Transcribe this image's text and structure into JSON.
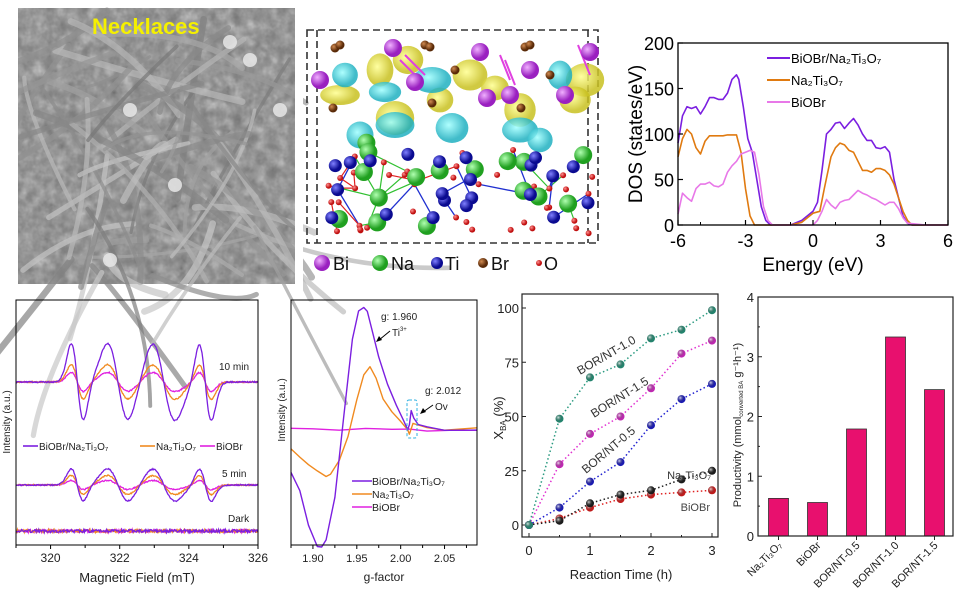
{
  "sem": {
    "label": "Necklaces",
    "label_color": "#f5f000"
  },
  "structure": {
    "legend": [
      {
        "symbol": "Bi",
        "color": "#c040e0"
      },
      {
        "symbol": "Na",
        "color": "#30d030"
      },
      {
        "symbol": "Ti",
        "color": "#1a1ad0"
      },
      {
        "symbol": "Br",
        "color": "#8b4513"
      },
      {
        "symbol": "O",
        "color": "#e02020"
      }
    ]
  },
  "chart_data": [
    {
      "id": "dos",
      "type": "line",
      "xlabel": "Energy (eV)",
      "ylabel": "DOS (states/eV)",
      "xlim": [
        -6,
        6
      ],
      "ylim": [
        0,
        200
      ],
      "xticks": [
        "-6",
        "-3",
        "0",
        "3",
        "6"
      ],
      "yticks": [
        "0",
        "50",
        "100",
        "150",
        "200"
      ],
      "legend_position": "top-right",
      "series": [
        {
          "name": "BiOBr/Na₂Ti₃O₇",
          "color": "#7b1fe0",
          "x": [
            -6,
            -5.8,
            -5.6,
            -5.4,
            -5.2,
            -5,
            -4.8,
            -4.6,
            -4.4,
            -4.2,
            -4,
            -3.8,
            -3.6,
            -3.4,
            -3.3,
            -3.1,
            -2.9,
            -2.7,
            -2.5,
            -2.3,
            -2.1,
            -1.9,
            -1.5,
            -1,
            -0.5,
            0,
            0.2,
            0.4,
            0.6,
            0.8,
            1,
            1.2,
            1.4,
            1.6,
            1.8,
            2,
            2.2,
            2.4,
            2.6,
            2.8,
            3,
            3.2,
            3.4,
            3.6,
            3.8,
            4,
            4.2,
            4.4,
            4.6,
            5,
            6
          ],
          "y": [
            90,
            120,
            130,
            128,
            130,
            122,
            130,
            140,
            140,
            138,
            138,
            145,
            160,
            165,
            160,
            130,
            95,
            80,
            50,
            20,
            5,
            0,
            0,
            0,
            5,
            15,
            25,
            60,
            100,
            105,
            112,
            113,
            106,
            112,
            117,
            110,
            100,
            93,
            93,
            85,
            84,
            86,
            80,
            50,
            30,
            10,
            2,
            0,
            0,
            0,
            0
          ]
        },
        {
          "name": "Na₂Ti₃O₇",
          "color": "#e07a10",
          "x": [
            -6,
            -5.8,
            -5.6,
            -5.4,
            -5.2,
            -5,
            -4.8,
            -4.6,
            -4.4,
            -4.2,
            -4,
            -3.8,
            -3.6,
            -3.4,
            -3.2,
            -3,
            -2.8,
            -2.6,
            -2.4,
            -2.2,
            -2,
            -1,
            -0.5,
            0,
            0.3,
            0.5,
            0.8,
            1,
            1.2,
            1.4,
            1.6,
            1.8,
            2,
            2.2,
            2.4,
            2.6,
            2.8,
            3,
            3.2,
            3.4,
            3.6,
            3.8,
            4,
            4.2,
            4.4,
            5,
            6
          ],
          "y": [
            75,
            95,
            105,
            100,
            85,
            78,
            92,
            98,
            98,
            98,
            98,
            99,
            99,
            99,
            80,
            40,
            10,
            0,
            0,
            0,
            0,
            0,
            3,
            13,
            15,
            40,
            75,
            85,
            90,
            88,
            82,
            80,
            70,
            60,
            60,
            58,
            62,
            62,
            60,
            55,
            45,
            30,
            15,
            5,
            0,
            0,
            0
          ]
        },
        {
          "name": "BiOBr",
          "color": "#e878e8",
          "x": [
            -6,
            -5.8,
            -5.6,
            -5.4,
            -5.2,
            -5,
            -4.8,
            -4.6,
            -4.4,
            -4.2,
            -4,
            -3.8,
            -3.6,
            -3.4,
            -3.2,
            -3,
            -2.8,
            -2.6,
            -2.4,
            -2.2,
            -2,
            -1.8,
            -1.5,
            0,
            0.2,
            0.4,
            0.6,
            0.8,
            1,
            1.2,
            1.4,
            1.6,
            1.8,
            2,
            2.2,
            2.4,
            2.6,
            2.8,
            3,
            3.2,
            3.4,
            3.6,
            3.8,
            4,
            4.2,
            5,
            6
          ],
          "y": [
            12,
            35,
            30,
            26,
            40,
            45,
            45,
            47,
            43,
            42,
            45,
            58,
            65,
            70,
            78,
            80,
            82,
            80,
            55,
            20,
            5,
            0,
            0,
            0,
            5,
            15,
            28,
            22,
            18,
            25,
            27,
            28,
            33,
            38,
            35,
            33,
            30,
            28,
            25,
            22,
            25,
            25,
            18,
            8,
            2,
            0,
            0
          ]
        }
      ]
    },
    {
      "id": "epr",
      "type": "line",
      "xlabel": "Magnetic Field (mT)",
      "ylabel": "Intensity (a.u.)",
      "xlim": [
        319,
        326
      ],
      "xticks": [
        "320",
        "322",
        "324",
        "326"
      ],
      "legend_position": "middle",
      "annotations": [
        "10 min",
        "5 min",
        "Dark"
      ],
      "peak_fields_mT": [
        320.6,
        321.65,
        322.95,
        324.3
      ],
      "trough_fields_mT": [
        320.95,
        322.25,
        323.6,
        324.65
      ],
      "series": [
        {
          "name": "BiOBr/Na₂Ti₃O₇",
          "color": "#7b1fe0",
          "amplitude_10min": 1.0,
          "amplitude_5min": 0.42,
          "amplitude_dark": 0.0
        },
        {
          "name": "Na₂Ti₃O₇",
          "color": "#f08a20",
          "amplitude_10min": 0.45,
          "amplitude_5min": 0.25,
          "amplitude_dark": 0.0
        },
        {
          "name": "BiOBr",
          "color": "#e020e0",
          "amplitude_10min": 0.25,
          "amplitude_5min": 0.12,
          "amplitude_dark": 0.0
        }
      ]
    },
    {
      "id": "gfactor",
      "type": "line",
      "xlabel": "g-factor",
      "ylabel": "Intensity (a.u.)",
      "xlim": [
        1.875,
        2.087
      ],
      "xticks": [
        "1.90",
        "1.95",
        "2.00",
        "2.05"
      ],
      "legend_position": "bottom-right",
      "annotations": [
        {
          "text": "g: 1.960",
          "sub": "Ti",
          "sup": "3+"
        },
        {
          "text": "g: 2.012",
          "sub": "Ov"
        }
      ],
      "series": [
        {
          "name": "BiOBr/Na₂Ti₃O₇",
          "color": "#7b1fe0",
          "x": [
            1.875,
            1.885,
            1.895,
            1.905,
            1.91,
            1.915,
            1.925,
            1.935,
            1.945,
            1.952,
            1.958,
            1.962,
            1.968,
            1.975,
            1.985,
            1.995,
            2.003,
            2.008,
            2.01,
            2.012,
            2.015,
            2.02,
            2.03,
            2.05,
            2.087
          ],
          "y": [
            -0.35,
            -0.5,
            -0.78,
            -0.95,
            -0.96,
            -0.9,
            -0.55,
            0.1,
            0.75,
            0.97,
            1.0,
            0.97,
            0.8,
            0.6,
            0.38,
            0.2,
            0.08,
            0.0,
            0.05,
            0.16,
            0.1,
            0.05,
            0.02,
            0.0,
            0.0
          ]
        },
        {
          "name": "Na₂Ti₃O₇",
          "color": "#f08a20",
          "x": [
            1.875,
            1.885,
            1.895,
            1.905,
            1.915,
            1.92,
            1.93,
            1.94,
            1.95,
            1.958,
            1.965,
            1.972,
            1.98,
            1.99,
            2.0,
            2.008,
            2.01,
            2.014,
            2.02,
            2.03,
            2.05,
            2.087
          ],
          "y": [
            -0.15,
            -0.22,
            -0.28,
            -0.34,
            -0.38,
            -0.36,
            -0.25,
            -0.05,
            0.25,
            0.45,
            0.52,
            0.42,
            0.25,
            0.15,
            0.07,
            0.0,
            -0.04,
            0.05,
            0.04,
            0.02,
            0.0,
            0.02
          ]
        },
        {
          "name": "BiOBr",
          "color": "#e020e0",
          "x": [
            1.875,
            1.9,
            1.93,
            1.96,
            1.99,
            2.01,
            2.03,
            2.06,
            2.087
          ],
          "y": [
            0.02,
            0.01,
            0.0,
            0.01,
            0.0,
            0.01,
            -0.01,
            0.0,
            0.0
          ]
        }
      ]
    },
    {
      "id": "conversion",
      "type": "scatter",
      "xlabel": "Reaction Time (h)",
      "ylabel": "X",
      "ylabel_sub": "BA",
      "ylabel_suffix": " (%)",
      "xlim": [
        -0.1,
        3.1
      ],
      "ylim": [
        -5,
        105
      ],
      "xticks": [
        "0",
        "1",
        "2",
        "3"
      ],
      "yticks": [
        "0",
        "25",
        "50",
        "75",
        "100"
      ],
      "x": [
        0,
        0.5,
        1,
        1.5,
        2,
        2.5,
        3
      ],
      "series": [
        {
          "name": "BOR/NT-1.0",
          "color": "#2a9a80",
          "values": [
            0,
            49,
            68,
            74,
            86,
            90,
            99
          ]
        },
        {
          "name": "BOR/NT-1.5",
          "color": "#e030d0",
          "values": [
            0,
            28,
            42,
            50,
            63,
            79,
            85
          ]
        },
        {
          "name": "BOR/NT-0.5",
          "color": "#2020d0",
          "values": [
            0,
            8,
            20,
            29,
            46,
            58,
            65
          ]
        },
        {
          "name": "Na₂Ti₃O₇",
          "color": "#202020",
          "values": [
            0,
            2,
            10,
            14,
            16,
            21,
            25
          ]
        },
        {
          "name": "BiOBr",
          "color": "#e02020",
          "values": [
            0,
            3,
            8,
            12,
            14,
            15,
            16
          ]
        }
      ]
    },
    {
      "id": "productivity",
      "type": "bar",
      "ylabel": "Productivity (mmol",
      "ylabel_sub": "converted BA",
      "ylabel_suffix": " g⁻¹h⁻¹)",
      "ylim": [
        0,
        4
      ],
      "yticks": [
        "0",
        "1",
        "2",
        "3",
        "4"
      ],
      "color": "#e8106e",
      "categories": [
        "Na₂Ti₃O₇",
        "BiOBr",
        "BOR/NT-0.5",
        "BOR/NT-1.0",
        "BOR/NT-1.5"
      ],
      "values": [
        0.63,
        0.56,
        1.79,
        3.33,
        2.45
      ]
    }
  ]
}
